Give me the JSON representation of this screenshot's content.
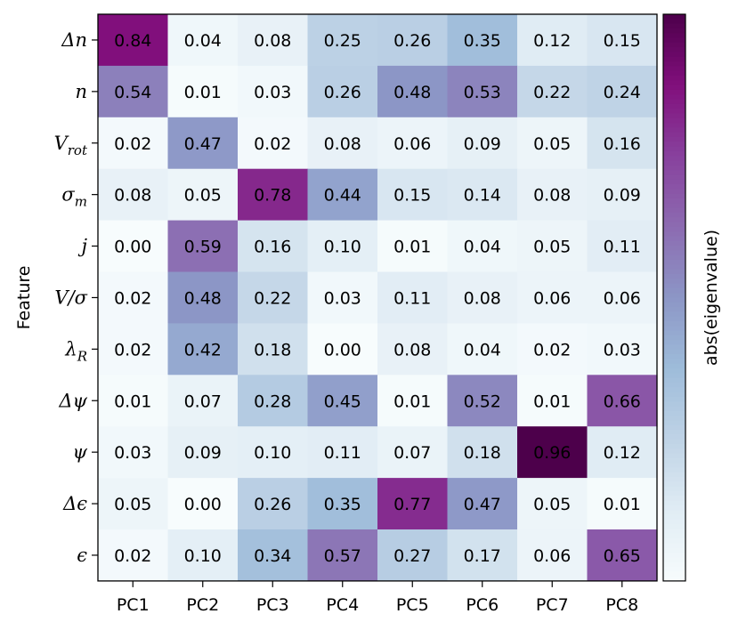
{
  "chart_data": {
    "type": "heatmap",
    "title": "",
    "xlabel": "",
    "ylabel": "Feature",
    "x_categories": [
      "PC1",
      "PC2",
      "PC3",
      "PC4",
      "PC5",
      "PC6",
      "PC7",
      "PC8"
    ],
    "y_categories": [
      "Δn",
      "n",
      "V_rot",
      "σ_m",
      "j",
      "V/σ",
      "λ_R",
      "Δψ",
      "ψ",
      "Δϵ",
      "ϵ"
    ],
    "values": [
      [
        0.84,
        0.04,
        0.08,
        0.25,
        0.26,
        0.35,
        0.12,
        0.15
      ],
      [
        0.54,
        0.01,
        0.03,
        0.26,
        0.48,
        0.53,
        0.22,
        0.24
      ],
      [
        0.02,
        0.47,
        0.02,
        0.08,
        0.06,
        0.09,
        0.05,
        0.16
      ],
      [
        0.08,
        0.05,
        0.78,
        0.44,
        0.15,
        0.14,
        0.08,
        0.09
      ],
      [
        0.0,
        0.59,
        0.16,
        0.1,
        0.01,
        0.04,
        0.05,
        0.11
      ],
      [
        0.02,
        0.48,
        0.22,
        0.03,
        0.11,
        0.08,
        0.06,
        0.06
      ],
      [
        0.02,
        0.42,
        0.18,
        0.0,
        0.08,
        0.04,
        0.02,
        0.03
      ],
      [
        0.01,
        0.07,
        0.28,
        0.45,
        0.01,
        0.52,
        0.01,
        0.66
      ],
      [
        0.03,
        0.09,
        0.1,
        0.11,
        0.07,
        0.18,
        0.96,
        0.12
      ],
      [
        0.05,
        0.0,
        0.26,
        0.35,
        0.77,
        0.47,
        0.05,
        0.01
      ],
      [
        0.02,
        0.1,
        0.34,
        0.57,
        0.27,
        0.17,
        0.06,
        0.65
      ]
    ],
    "colorbar_label": "abs(eigenvalue)",
    "colormap": "BuPu",
    "value_range": [
      0,
      0.96
    ],
    "grid": false
  }
}
